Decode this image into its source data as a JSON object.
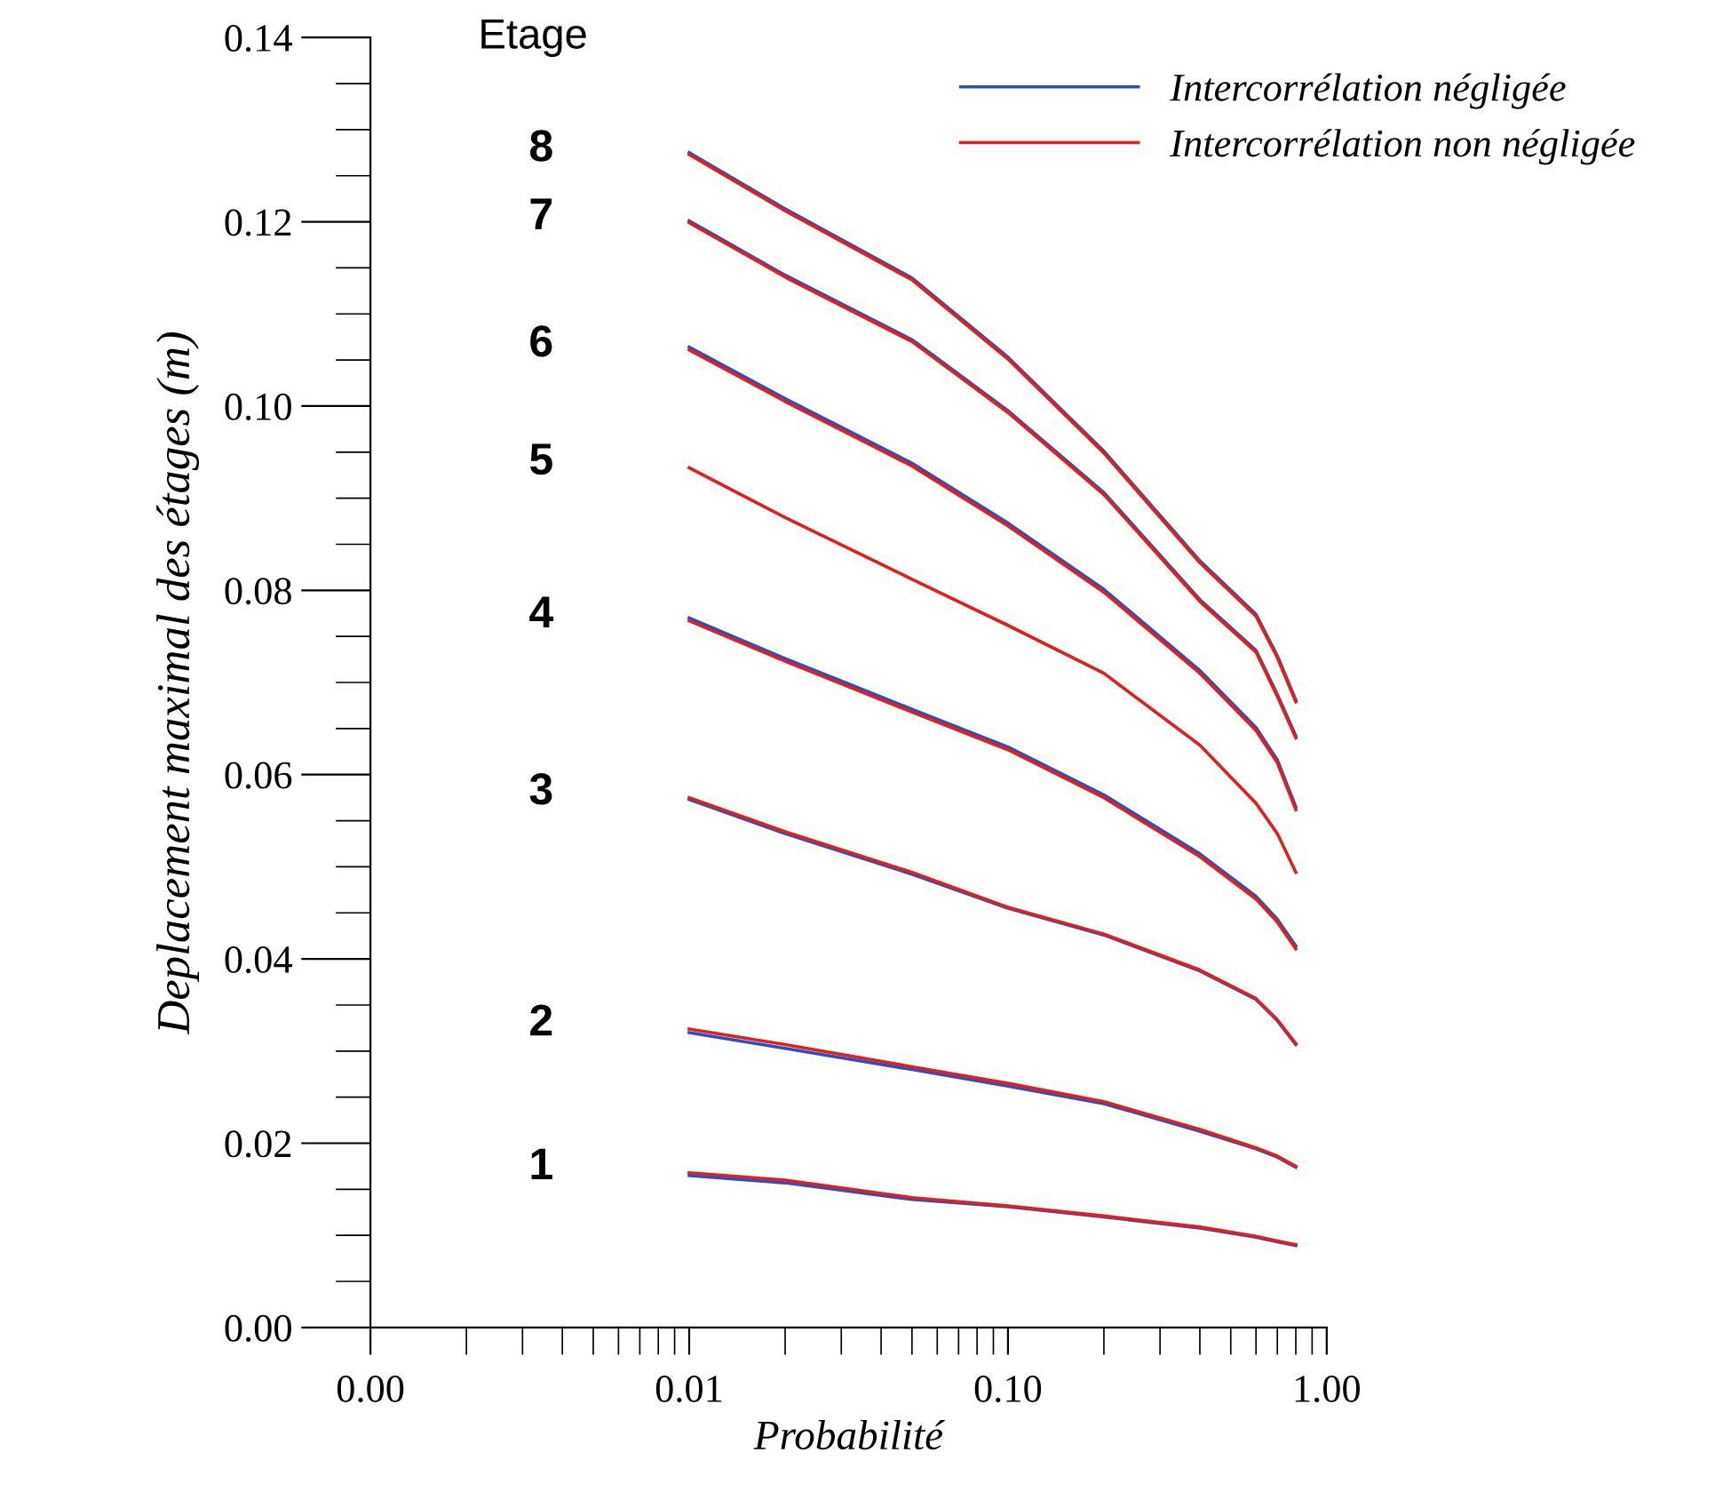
{
  "chart_data": {
    "type": "line",
    "xlabel": "Probabilité",
    "ylabel": "Deplacement maximal des étages (m)",
    "x": [
      0.01,
      0.02,
      0.05,
      0.1,
      0.2,
      0.4,
      0.6,
      0.7,
      0.8
    ],
    "series": [
      {
        "name": "Intercorrélation négligée",
        "color": "#2a4fc0",
        "values": [
          0.0165,
          0.0157,
          0.0139,
          0.0131,
          0.012,
          0.0108,
          0.0098,
          0.0093,
          0.0089
        ]
      },
      {
        "color": "#2a4fc0",
        "values": [
          0.032,
          0.0303,
          0.028,
          0.0262,
          0.0243,
          0.0213,
          0.0194,
          0.0185,
          0.0174
        ]
      },
      {
        "color": "#2a4fc0",
        "values": [
          0.0573,
          0.0536,
          0.0492,
          0.0455,
          0.0426,
          0.0387,
          0.0356,
          0.0333,
          0.0307
        ]
      },
      {
        "color": "#2a4fc0",
        "values": [
          0.077,
          0.0726,
          0.0671,
          0.063,
          0.0578,
          0.0514,
          0.0468,
          0.0443,
          0.0414
        ]
      },
      {
        "color": "#2a4fc0",
        "values": [
          0.1064,
          0.1008,
          0.0938,
          0.0873,
          0.0801,
          0.0713,
          0.0651,
          0.0616,
          0.0565
        ]
      },
      {
        "color": "#2a4fc0",
        "values": [
          0.1201,
          0.1142,
          0.1072,
          0.0995,
          0.0906,
          0.079,
          0.0735,
          0.0687,
          0.0642
        ]
      },
      {
        "color": "#2a4fc0",
        "values": [
          0.1275,
          0.1214,
          0.1139,
          0.1053,
          0.0951,
          0.0832,
          0.0774,
          0.0729,
          0.0681
        ]
      },
      {
        "name": "Intercorrélation non négligée",
        "color": "#e02020",
        "values": [
          0.0168,
          0.016,
          0.0141,
          0.0132,
          0.0121,
          0.0109,
          0.0099,
          0.0094,
          0.009
        ]
      },
      {
        "color": "#e02020",
        "values": [
          0.0324,
          0.0307,
          0.0283,
          0.0265,
          0.0245,
          0.0215,
          0.0195,
          0.0186,
          0.0175
        ]
      },
      {
        "color": "#e02020",
        "values": [
          0.0575,
          0.0538,
          0.0494,
          0.0456,
          0.0427,
          0.0388,
          0.0357,
          0.0334,
          0.0308
        ]
      },
      {
        "color": "#e02020",
        "values": [
          0.0767,
          0.0723,
          0.0668,
          0.0627,
          0.0575,
          0.0511,
          0.0465,
          0.044,
          0.0411
        ]
      },
      {
        "color": "#e02020",
        "values": [
          0.0933,
          0.0879,
          0.0812,
          0.0762,
          0.071,
          0.0632,
          0.0569,
          0.0536,
          0.0494
        ]
      },
      {
        "color": "#e02020",
        "values": [
          0.1061,
          0.1005,
          0.0935,
          0.087,
          0.0798,
          0.071,
          0.0648,
          0.0613,
          0.0562
        ]
      },
      {
        "color": "#e02020",
        "values": [
          0.1199,
          0.114,
          0.107,
          0.0993,
          0.0904,
          0.0788,
          0.0733,
          0.0685,
          0.064
        ]
      },
      {
        "color": "#e02020",
        "values": [
          0.1273,
          0.1212,
          0.1137,
          0.1051,
          0.0949,
          0.083,
          0.0772,
          0.0727,
          0.0679
        ]
      }
    ],
    "xlim": [
      0.001,
      1.0
    ],
    "xticks": [
      {
        "value": 0.001,
        "label": "0.00"
      },
      {
        "value": 0.01,
        "label": "0.01"
      },
      {
        "value": 0.1,
        "label": "0.10"
      },
      {
        "value": 1.0,
        "label": "1.00"
      }
    ],
    "ylim": [
      0.0,
      0.14
    ],
    "yticks": [
      {
        "value": 0.0,
        "label": "0.00"
      },
      {
        "value": 0.02,
        "label": "0.02"
      },
      {
        "value": 0.04,
        "label": "0.04"
      },
      {
        "value": 0.06,
        "label": "0.06"
      },
      {
        "value": 0.08,
        "label": "0.08"
      },
      {
        "value": 0.1,
        "label": "0.10"
      },
      {
        "value": 0.12,
        "label": "0.12"
      },
      {
        "value": 0.14,
        "label": "0.14"
      }
    ],
    "log": "x",
    "grid": false,
    "legend": "top right",
    "marker": "none",
    "line_style": "solid",
    "annotations": [
      "Etage",
      "1",
      "2",
      "3",
      "4",
      "5",
      "6",
      "7",
      "8"
    ]
  }
}
